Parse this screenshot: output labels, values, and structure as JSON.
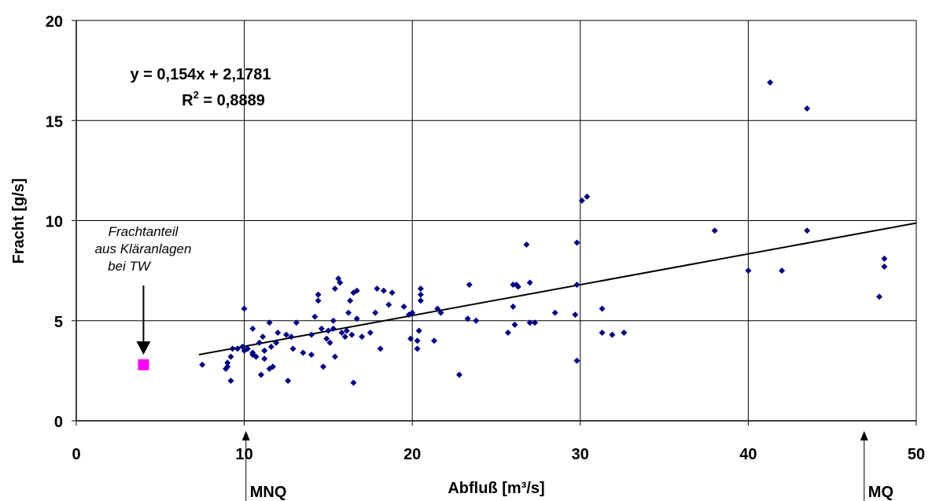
{
  "chart_data": {
    "type": "scatter",
    "xlabel": "Abfluß [m³/s]",
    "ylabel": "Fracht [g/s]",
    "xlim": [
      0,
      50
    ],
    "ylim": [
      0,
      20
    ],
    "x_ticks": [
      "0",
      "10",
      "20",
      "30",
      "40",
      "50"
    ],
    "y_ticks": [
      "0",
      "5",
      "10",
      "15",
      "20"
    ],
    "grid": true,
    "marker_color": "#000080",
    "trendline": {
      "slope": 0.154,
      "intercept": 2.1781,
      "x_range": [
        7.3,
        50
      ],
      "color": "#000000"
    },
    "equation": {
      "line1": "y = 0,154x + 2,1781",
      "r2_prefix": "R",
      "r2_sup": "2",
      "r2_value": " = 0,8889"
    },
    "points": [
      [
        7.5,
        2.8
      ],
      [
        8.9,
        2.6
      ],
      [
        9.0,
        2.7
      ],
      [
        9.0,
        2.9
      ],
      [
        9.2,
        2.0
      ],
      [
        9.2,
        3.2
      ],
      [
        9.3,
        3.6
      ],
      [
        9.6,
        3.6
      ],
      [
        9.9,
        3.7
      ],
      [
        10.0,
        3.5
      ],
      [
        10.0,
        5.6
      ],
      [
        10.2,
        3.6
      ],
      [
        10.5,
        3.3
      ],
      [
        10.5,
        4.6
      ],
      [
        10.5,
        3.4
      ],
      [
        10.7,
        3.2
      ],
      [
        10.9,
        3.9
      ],
      [
        11.0,
        2.3
      ],
      [
        11.1,
        4.2
      ],
      [
        11.2,
        3.1
      ],
      [
        11.2,
        3.5
      ],
      [
        11.5,
        2.6
      ],
      [
        11.5,
        4.9
      ],
      [
        11.6,
        3.7
      ],
      [
        11.7,
        2.7
      ],
      [
        11.9,
        3.9
      ],
      [
        12.0,
        4.4
      ],
      [
        12.5,
        4.3
      ],
      [
        12.6,
        2.0
      ],
      [
        12.8,
        4.2
      ],
      [
        12.9,
        3.6
      ],
      [
        13.1,
        4.9
      ],
      [
        13.5,
        3.4
      ],
      [
        14.0,
        4.3
      ],
      [
        14.0,
        3.3
      ],
      [
        14.2,
        5.2
      ],
      [
        14.4,
        6.0
      ],
      [
        14.4,
        6.3
      ],
      [
        14.6,
        4.6
      ],
      [
        14.7,
        2.7
      ],
      [
        14.9,
        4.1
      ],
      [
        15.0,
        4.5
      ],
      [
        15.1,
        3.9
      ],
      [
        15.3,
        4.6
      ],
      [
        15.3,
        5.0
      ],
      [
        15.4,
        3.2
      ],
      [
        15.4,
        6.6
      ],
      [
        15.6,
        7.1
      ],
      [
        15.7,
        6.9
      ],
      [
        15.8,
        4.4
      ],
      [
        16.0,
        4.2
      ],
      [
        16.1,
        4.5
      ],
      [
        16.2,
        5.4
      ],
      [
        16.3,
        6.0
      ],
      [
        16.4,
        4.3
      ],
      [
        16.5,
        6.4
      ],
      [
        16.5,
        1.9
      ],
      [
        16.7,
        6.5
      ],
      [
        16.7,
        5.1
      ],
      [
        17.0,
        4.2
      ],
      [
        17.5,
        4.4
      ],
      [
        17.8,
        5.4
      ],
      [
        17.9,
        6.6
      ],
      [
        18.1,
        3.6
      ],
      [
        18.3,
        6.5
      ],
      [
        18.6,
        5.8
      ],
      [
        18.8,
        6.4
      ],
      [
        19.5,
        5.7
      ],
      [
        19.8,
        5.3
      ],
      [
        19.9,
        4.1
      ],
      [
        20.0,
        5.4
      ],
      [
        20.3,
        3.6
      ],
      [
        20.3,
        4.0
      ],
      [
        20.4,
        4.5
      ],
      [
        20.5,
        6.0
      ],
      [
        20.5,
        6.3
      ],
      [
        20.5,
        6.6
      ],
      [
        21.3,
        4.0
      ],
      [
        21.5,
        5.6
      ],
      [
        21.7,
        5.4
      ],
      [
        22.8,
        2.3
      ],
      [
        23.3,
        5.1
      ],
      [
        23.4,
        6.8
      ],
      [
        23.8,
        5.0
      ],
      [
        25.7,
        4.4
      ],
      [
        26.0,
        5.7
      ],
      [
        26.0,
        6.8
      ],
      [
        26.1,
        4.8
      ],
      [
        26.2,
        6.8
      ],
      [
        26.3,
        6.7
      ],
      [
        26.8,
        8.8
      ],
      [
        27.0,
        6.9
      ],
      [
        27.0,
        4.9
      ],
      [
        27.3,
        4.9
      ],
      [
        28.5,
        5.4
      ],
      [
        29.7,
        5.3
      ],
      [
        29.8,
        8.9
      ],
      [
        29.8,
        6.8
      ],
      [
        29.8,
        3.0
      ],
      [
        30.1,
        11.0
      ],
      [
        30.4,
        11.2
      ],
      [
        31.3,
        5.6
      ],
      [
        31.3,
        4.4
      ],
      [
        31.9,
        4.3
      ],
      [
        32.6,
        4.4
      ],
      [
        38.0,
        9.5
      ],
      [
        40.0,
        7.5
      ],
      [
        41.3,
        16.9
      ],
      [
        42.0,
        7.5
      ],
      [
        43.5,
        15.6
      ],
      [
        43.5,
        9.5
      ],
      [
        47.8,
        6.2
      ],
      [
        48.1,
        7.7
      ],
      [
        48.1,
        8.1
      ]
    ],
    "highlight_point": {
      "x": 4.0,
      "y": 2.8,
      "color": "#ff00ff"
    },
    "annotation": {
      "lines": [
        "Frachtanteil",
        "aus Kläranlagen",
        "bei TW"
      ]
    },
    "markers": [
      {
        "label": "MNQ",
        "x": 10.1
      },
      {
        "label": "MQ",
        "x": 46.9
      }
    ]
  }
}
